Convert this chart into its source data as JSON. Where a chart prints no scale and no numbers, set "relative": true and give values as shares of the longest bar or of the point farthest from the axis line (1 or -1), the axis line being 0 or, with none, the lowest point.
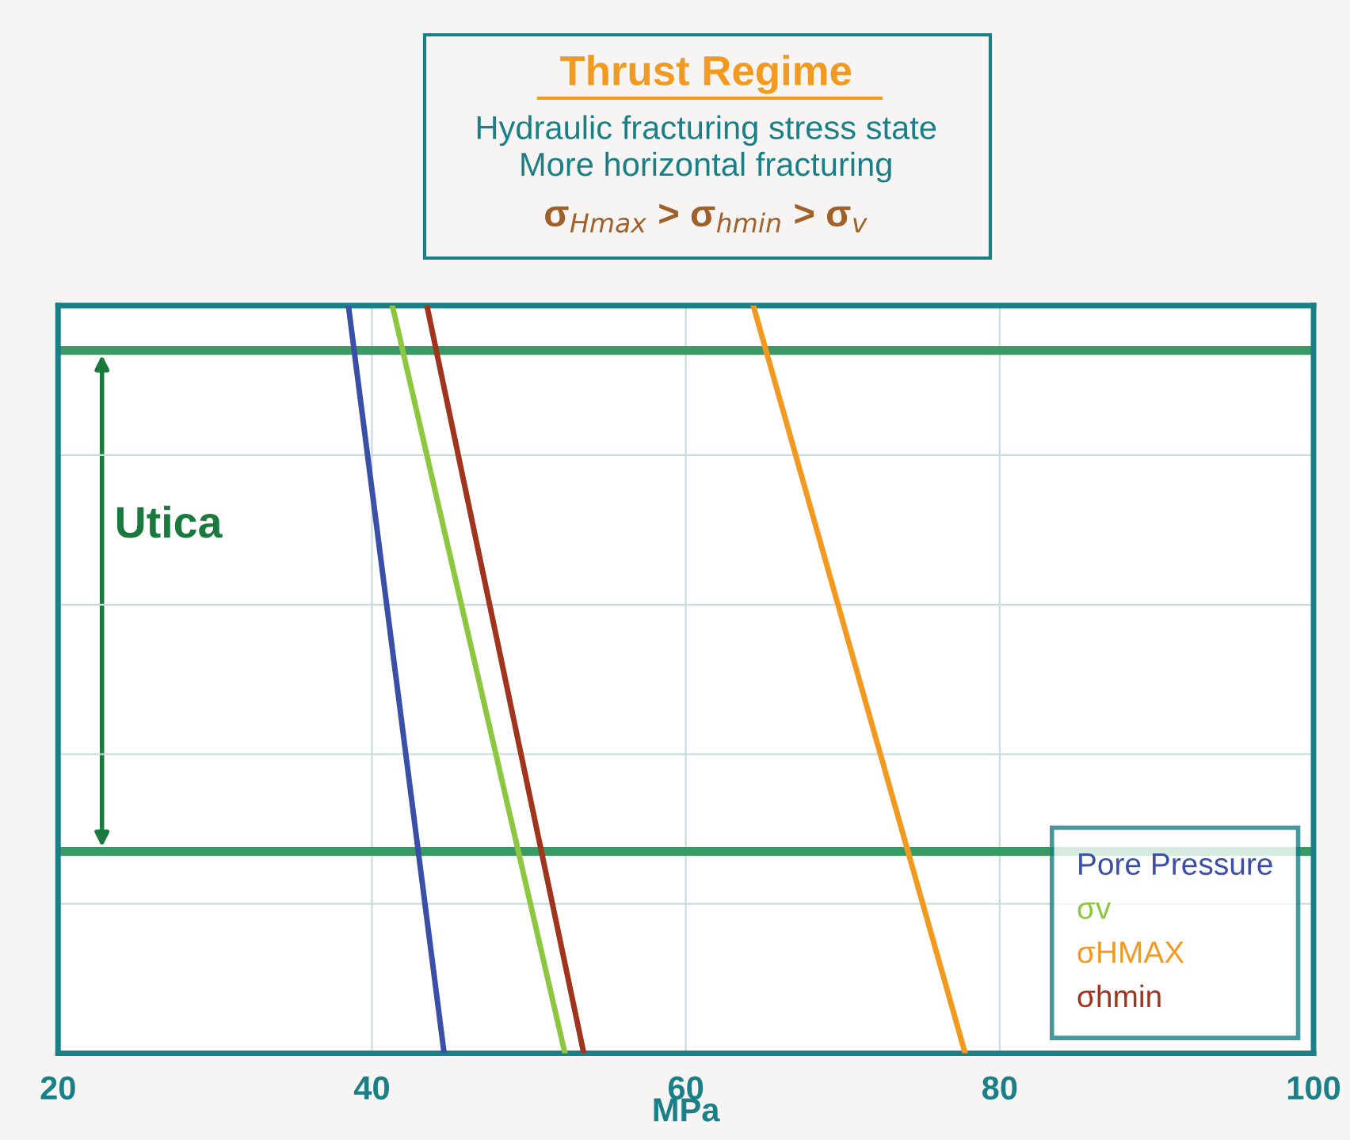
{
  "chart_data": {
    "type": "line",
    "title": "Thrust Regime",
    "subtitle": "Hydraulic fracturing stress state\nMore horizontal fracturing",
    "annotations": [
      "σ$_{Hmax}$ > σ$_{hmin}$ > σ$_{v}$",
      "Utica"
    ],
    "xlabel": "MPa",
    "relative": true,
    "xlim": [
      20,
      100
    ],
    "xticks": [
      20,
      40,
      60,
      80,
      100
    ],
    "series": [
      {
        "name": "Pore Pressure",
        "color": "#3a4fa8",
        "x": [
          38.5,
          44.6
        ],
        "values": [
          1,
          0
        ]
      },
      {
        "name": "σv",
        "color": "#8dc63f",
        "x": [
          41.3,
          52.3
        ],
        "values": [
          1,
          0
        ]
      },
      {
        "name": "σHMAX",
        "color": "#f29a1f",
        "x": [
          64.3,
          77.8
        ],
        "values": [
          1,
          0
        ]
      },
      {
        "name": "σhmin",
        "color": "#a0341c",
        "x": [
          43.5,
          53.5
        ],
        "values": [
          1,
          0
        ]
      }
    ],
    "ref_lines": [
      {
        "axis": "y",
        "value": 0.94,
        "color": "#3a9a63"
      },
      {
        "axis": "y",
        "value": 0.27,
        "color": "#3a9a63"
      }
    ],
    "grid": true,
    "legend": "bottom right",
    "marker": "none",
    "line_style": "solid"
  }
}
